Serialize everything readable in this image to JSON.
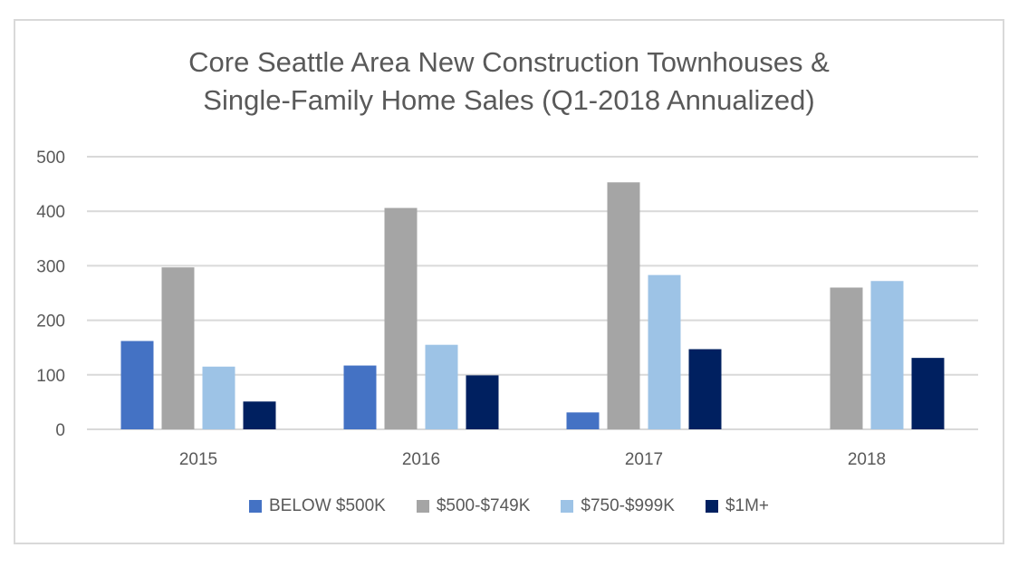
{
  "chart_data": {
    "type": "bar",
    "title_lines": [
      "Core Seattle Area New Construction Townhouses &",
      "Single-Family Home Sales (Q1-2018 Annualized)"
    ],
    "categories": [
      "2015",
      "2016",
      "2017",
      "2018"
    ],
    "series": [
      {
        "name": "BELOW $500K",
        "color": "#4472c4",
        "values": [
          162,
          117,
          31,
          0
        ]
      },
      {
        "name": "$500-$749K",
        "color": "#a5a5a5",
        "values": [
          297,
          406,
          453,
          260
        ]
      },
      {
        "name": "$750-$999K",
        "color": "#9dc3e6",
        "values": [
          115,
          155,
          283,
          272
        ]
      },
      {
        "name": "$1M+",
        "color": "#002060",
        "values": [
          51,
          99,
          147,
          131
        ]
      }
    ],
    "ylim": [
      0,
      500
    ],
    "yticks": [
      0,
      100,
      200,
      300,
      400,
      500
    ],
    "grid": true,
    "legend_position": "bottom"
  }
}
